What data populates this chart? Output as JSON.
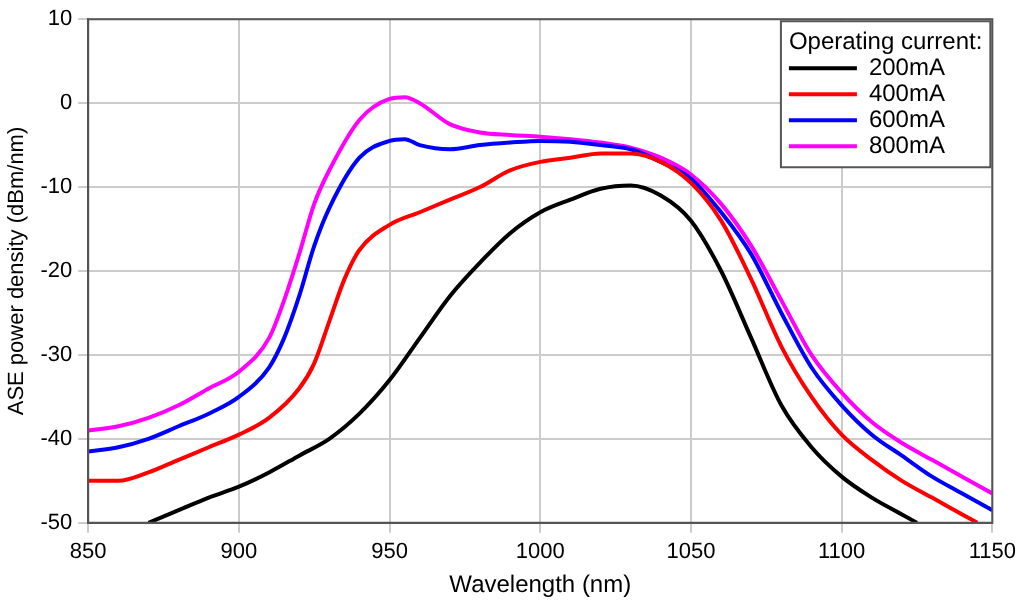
{
  "chart_data": {
    "type": "line",
    "xlabel": "Wavelength (nm)",
    "ylabel": "ASE power density (dBm/nm)",
    "legend_title": "Operating current:",
    "xlim": [
      850,
      1150
    ],
    "ylim": [
      -50,
      10
    ],
    "xticks": [
      850,
      900,
      950,
      1000,
      1050,
      1100,
      1150
    ],
    "yticks": [
      -50,
      -40,
      -30,
      -20,
      -10,
      0,
      10
    ],
    "grid": true,
    "legend": "top right",
    "marker": "none",
    "line_style": "solid",
    "series": [
      {
        "name": "200mA",
        "color": "#000000",
        "x": [
          870,
          880,
          890,
          900,
          910,
          920,
          930,
          940,
          950,
          960,
          970,
          980,
          990,
          1000,
          1010,
          1020,
          1030,
          1040,
          1050,
          1060,
          1070,
          1080,
          1090,
          1100,
          1110,
          1120,
          1125
        ],
        "values": [
          -50,
          -48.5,
          -47,
          -45.7,
          -44,
          -42,
          -40,
          -37,
          -33,
          -28,
          -23,
          -19,
          -15.5,
          -13,
          -11.5,
          -10.2,
          -9.8,
          -11,
          -14,
          -20,
          -28,
          -36,
          -41,
          -44.5,
          -47,
          -49,
          -50
        ]
      },
      {
        "name": "400mA",
        "color": "#ff0000",
        "x": [
          850,
          860,
          870,
          880,
          890,
          900,
          910,
          920,
          925,
          930,
          935,
          940,
          950,
          960,
          970,
          980,
          990,
          1000,
          1010,
          1020,
          1030,
          1040,
          1050,
          1060,
          1070,
          1080,
          1090,
          1100,
          1110,
          1120,
          1130,
          1140,
          1145
        ],
        "values": [
          -45,
          -45,
          -44,
          -42.5,
          -41,
          -39.5,
          -37.5,
          -34,
          -31,
          -26,
          -21,
          -17.5,
          -14.5,
          -13,
          -11.5,
          -10,
          -8,
          -7,
          -6.5,
          -6,
          -6,
          -7,
          -9.5,
          -14,
          -21,
          -29,
          -35,
          -39.5,
          -42.5,
          -45,
          -47,
          -49,
          -50
        ]
      },
      {
        "name": "600mA",
        "color": "#0000ff",
        "x": [
          850,
          860,
          870,
          880,
          890,
          900,
          910,
          915,
          920,
          925,
          930,
          940,
          950,
          955,
          960,
          970,
          980,
          990,
          1000,
          1010,
          1020,
          1030,
          1040,
          1050,
          1060,
          1070,
          1080,
          1090,
          1100,
          1110,
          1120,
          1130,
          1140,
          1150
        ],
        "values": [
          -41.5,
          -41,
          -40,
          -38.5,
          -37,
          -35,
          -31.5,
          -28,
          -23,
          -17,
          -12.5,
          -6.5,
          -4.5,
          -4.3,
          -5,
          -5.5,
          -5,
          -4.7,
          -4.5,
          -4.6,
          -5,
          -5.5,
          -7,
          -9,
          -13,
          -18,
          -25,
          -31.5,
          -36,
          -39.5,
          -42,
          -44.5,
          -46.5,
          -48.5
        ]
      },
      {
        "name": "800mA",
        "color": "#ff00ff",
        "x": [
          850,
          860,
          870,
          880,
          890,
          900,
          910,
          915,
          920,
          925,
          930,
          940,
          950,
          955,
          960,
          970,
          980,
          990,
          1000,
          1010,
          1020,
          1030,
          1040,
          1050,
          1060,
          1070,
          1080,
          1090,
          1100,
          1110,
          1120,
          1130,
          1140,
          1150
        ],
        "values": [
          -39,
          -38.5,
          -37.5,
          -36,
          -34,
          -32,
          -28,
          -23.5,
          -18,
          -12,
          -8,
          -2,
          0.5,
          0.7,
          0,
          -2.5,
          -3.5,
          -3.8,
          -4,
          -4.3,
          -4.7,
          -5.3,
          -6.5,
          -8.5,
          -12,
          -17,
          -23.5,
          -30,
          -34.5,
          -38,
          -40.5,
          -42.5,
          -44.5,
          -46.5
        ]
      }
    ]
  }
}
